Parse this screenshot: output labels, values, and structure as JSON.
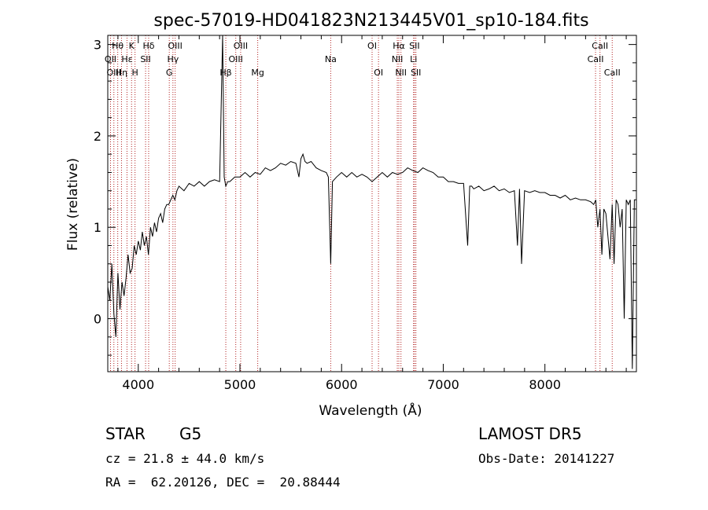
{
  "chart_data": {
    "type": "line",
    "title": "spec-57019-HD041823N213445V01_sp10-184.fits",
    "xlabel": "Wavelength (Å)",
    "ylabel": "Flux (relative)",
    "xlim": [
      3700,
      8900
    ],
    "ylim": [
      -0.58,
      3.1
    ],
    "xticks": [
      4000,
      5000,
      6000,
      7000,
      8000
    ],
    "yticks": [
      0,
      1,
      2,
      3
    ],
    "grid": false,
    "series": [
      {
        "color": "#000000",
        "x": [
          3700,
          3720,
          3740,
          3760,
          3780,
          3800,
          3820,
          3840,
          3860,
          3880,
          3900,
          3920,
          3940,
          3960,
          3980,
          4000,
          4020,
          4040,
          4060,
          4080,
          4100,
          4120,
          4140,
          4160,
          4180,
          4200,
          4220,
          4240,
          4260,
          4280,
          4300,
          4320,
          4340,
          4360,
          4380,
          4400,
          4450,
          4500,
          4550,
          4600,
          4650,
          4700,
          4750,
          4800,
          4830,
          4845,
          4861,
          4880,
          4900,
          4950,
          5000,
          5050,
          5100,
          5150,
          5200,
          5250,
          5300,
          5350,
          5400,
          5450,
          5500,
          5550,
          5580,
          5600,
          5620,
          5640,
          5660,
          5700,
          5750,
          5800,
          5850,
          5870,
          5893,
          5910,
          5950,
          6000,
          6050,
          6100,
          6150,
          6200,
          6250,
          6300,
          6350,
          6400,
          6450,
          6500,
          6550,
          6600,
          6650,
          6700,
          6750,
          6800,
          6850,
          6900,
          6950,
          7000,
          7050,
          7100,
          7150,
          7200,
          7240,
          7260,
          7280,
          7300,
          7350,
          7400,
          7450,
          7500,
          7550,
          7600,
          7650,
          7700,
          7730,
          7750,
          7770,
          7800,
          7850,
          7900,
          7950,
          8000,
          8050,
          8100,
          8150,
          8200,
          8250,
          8300,
          8350,
          8400,
          8450,
          8480,
          8500,
          8520,
          8542,
          8560,
          8580,
          8600,
          8640,
          8662,
          8680,
          8700,
          8720,
          8740,
          8760,
          8780,
          8800,
          8820,
          8840,
          8860,
          8880,
          8900
        ],
        "y": [
          0.35,
          0.2,
          0.6,
          0.05,
          -0.2,
          0.5,
          0.1,
          0.4,
          0.25,
          0.45,
          0.7,
          0.5,
          0.55,
          0.8,
          0.7,
          0.85,
          0.75,
          0.95,
          0.8,
          0.9,
          0.7,
          1.0,
          0.9,
          1.05,
          0.95,
          1.1,
          1.15,
          1.05,
          1.2,
          1.25,
          1.25,
          1.3,
          1.35,
          1.3,
          1.4,
          1.45,
          1.4,
          1.48,
          1.45,
          1.5,
          1.45,
          1.5,
          1.52,
          1.5,
          3.1,
          1.55,
          1.45,
          1.5,
          1.5,
          1.55,
          1.55,
          1.6,
          1.55,
          1.6,
          1.58,
          1.65,
          1.62,
          1.65,
          1.7,
          1.68,
          1.72,
          1.7,
          1.55,
          1.75,
          1.8,
          1.72,
          1.7,
          1.72,
          1.65,
          1.62,
          1.6,
          1.55,
          0.6,
          1.5,
          1.55,
          1.6,
          1.55,
          1.6,
          1.55,
          1.58,
          1.55,
          1.5,
          1.55,
          1.6,
          1.55,
          1.6,
          1.58,
          1.6,
          1.65,
          1.62,
          1.6,
          1.65,
          1.62,
          1.6,
          1.55,
          1.55,
          1.5,
          1.5,
          1.48,
          1.48,
          0.8,
          1.45,
          1.45,
          1.42,
          1.45,
          1.4,
          1.42,
          1.45,
          1.4,
          1.42,
          1.38,
          1.4,
          0.8,
          1.42,
          0.6,
          1.4,
          1.38,
          1.4,
          1.38,
          1.38,
          1.35,
          1.35,
          1.32,
          1.35,
          1.3,
          1.32,
          1.3,
          1.3,
          1.28,
          1.25,
          1.3,
          1.0,
          1.2,
          0.7,
          1.2,
          1.15,
          0.65,
          1.25,
          0.6,
          1.3,
          1.25,
          1.0,
          1.2,
          0.0,
          1.3,
          1.25,
          1.3,
          -0.55,
          1.3,
          1.3
        ]
      }
    ],
    "line_ids": [
      {
        "name": "Hθ",
        "x": 3798,
        "row": 1,
        "below": false
      },
      {
        "name": "OII",
        "x": 3727,
        "row": 2,
        "below": false
      },
      {
        "name": "OIII",
        "x": 3760,
        "row": 3,
        "below": false
      },
      {
        "name": "Hη",
        "x": 3835,
        "row": 3,
        "below": false
      },
      {
        "name": "Hε",
        "x": 3889,
        "row": 2,
        "below": false
      },
      {
        "name": "K",
        "x": 3934,
        "row": 1,
        "below": false
      },
      {
        "name": "H",
        "x": 3968,
        "row": 3,
        "below": false
      },
      {
        "name": "Hδ",
        "x": 4102,
        "row": 1,
        "below": false
      },
      {
        "name": "SII",
        "x": 4072,
        "row": 2,
        "below": false
      },
      {
        "name": "Hγ",
        "x": 4341,
        "row": 2,
        "below": false
      },
      {
        "name": "OIII",
        "x": 4363,
        "row": 1,
        "below": false
      },
      {
        "name": "G",
        "x": 4305,
        "row": 3,
        "below": false
      },
      {
        "name": "Hβ",
        "x": 4861,
        "row": 3,
        "below": false
      },
      {
        "name": "OIII",
        "x": 5007,
        "row": 1,
        "below": false
      },
      {
        "name": "OIII",
        "x": 4959,
        "row": 2,
        "below": false
      },
      {
        "name": "Mg",
        "x": 5175,
        "row": 3,
        "below": false
      },
      {
        "name": "Na",
        "x": 5893,
        "row": 2,
        "below": false
      },
      {
        "name": "OI",
        "x": 6300,
        "row": 1,
        "below": false
      },
      {
        "name": "OI",
        "x": 6363,
        "row": 3,
        "below": false
      },
      {
        "name": "NII",
        "x": 6548,
        "row": 2,
        "below": false
      },
      {
        "name": "Hα",
        "x": 6563,
        "row": 1,
        "below": false
      },
      {
        "name": "NII",
        "x": 6584,
        "row": 3,
        "below": false
      },
      {
        "name": "Li",
        "x": 6708,
        "row": 2,
        "below": false
      },
      {
        "name": "SII",
        "x": 6717,
        "row": 1,
        "below": false
      },
      {
        "name": "SII",
        "x": 6731,
        "row": 3,
        "below": false
      },
      {
        "name": "CaII",
        "x": 8542,
        "row": 1,
        "below": false
      },
      {
        "name": "CaII",
        "x": 8498,
        "row": 2,
        "below": false
      },
      {
        "name": "CaII",
        "x": 8662,
        "row": 3,
        "below": false
      }
    ]
  },
  "footer": {
    "class": "STAR",
    "subclass": "G5",
    "survey": "LAMOST DR5",
    "cz": "cz = 21.8 ± 44.0 km/s",
    "obs_date": "Obs-Date: 20141227",
    "radec": "RA =  62.20126, DEC =  20.88444"
  },
  "colors": {
    "line_markers": "#b22222",
    "spectrum": "#000000"
  }
}
